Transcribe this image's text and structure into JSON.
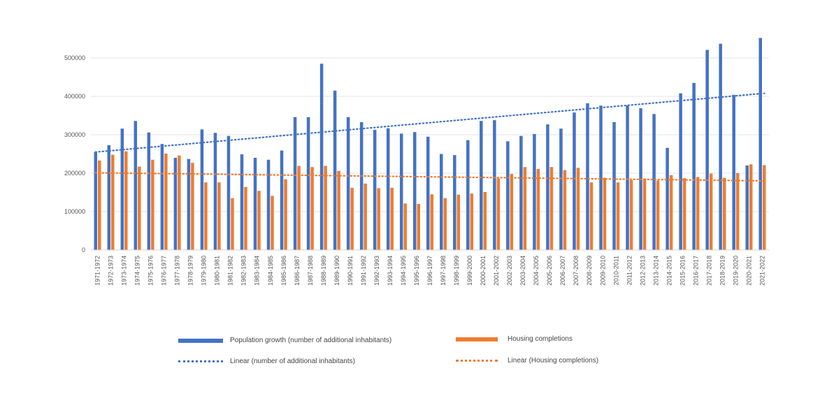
{
  "chart_data": {
    "type": "bar",
    "title": "",
    "xlabel": "",
    "ylabel": "",
    "ylim": [
      0,
      560000
    ],
    "yticks": [
      "0",
      "100000",
      "200000",
      "300000",
      "400000",
      "500000"
    ],
    "ytick_values": [
      0,
      100000,
      200000,
      300000,
      400000,
      500000
    ],
    "grid": true,
    "legend_position": "bottom",
    "categories": [
      "1971-1972",
      "1972-1973",
      "1973-1974",
      "1974-1975",
      "1975-1976",
      "1976-1977",
      "1977-1978",
      "1978-1979",
      "1979-1980",
      "1980-1981",
      "1981-1982",
      "1982-1983",
      "1983-1984",
      "1984-1985",
      "1985-1986",
      "1986-1987",
      "1987-1988",
      "1988-1989",
      "1989-1990",
      "1990-1991",
      "1991-1992",
      "1992-1993",
      "1993-1994",
      "1994-1995",
      "1995-1996",
      "1996-1997",
      "1997-1998",
      "1998-1999",
      "1999-2000",
      "2000-2001",
      "2001-2002",
      "2002-2003",
      "2003-2004",
      "2004-2005",
      "2005-2006",
      "2006-2007",
      "2007-2008",
      "2008-2009",
      "2009-2010",
      "2010-2011",
      "2011-2012",
      "2012-2013",
      "2013-2014",
      "2014-2015",
      "2015-2016",
      "2016-2017",
      "2017-2018",
      "2018-2019",
      "2019-2020",
      "2020-2021",
      "2021-2022"
    ],
    "series": [
      {
        "name": "Population growth (number of additional inhabitants)",
        "color": "#4472c4",
        "values": [
          255000,
          273000,
          316000,
          336000,
          306000,
          276000,
          240000,
          237000,
          314000,
          305000,
          297000,
          249000,
          240000,
          235000,
          259000,
          346000,
          346000,
          485000,
          415000,
          346000,
          333000,
          313000,
          317000,
          303000,
          307000,
          295000,
          250000,
          247000,
          286000,
          336000,
          338000,
          283000,
          297000,
          302000,
          327000,
          316000,
          358000,
          382000,
          376000,
          333000,
          376000,
          369000,
          354000,
          266000,
          408000,
          435000,
          521000,
          537000,
          404000,
          220000,
          552000
        ]
      },
      {
        "name": "Housing completions",
        "color": "#ed7d31",
        "values": [
          233000,
          248000,
          257000,
          217000,
          235000,
          251000,
          246000,
          227000,
          176000,
          176000,
          135000,
          164000,
          154000,
          141000,
          184000,
          219000,
          216000,
          219000,
          206000,
          162000,
          173000,
          161000,
          162000,
          121000,
          120000,
          145000,
          135000,
          144000,
          147000,
          151000,
          186000,
          198000,
          216000,
          211000,
          216000,
          208000,
          214000,
          176000,
          188000,
          176000,
          182000,
          186000,
          181000,
          195000,
          187000,
          190000,
          199000,
          188000,
          200000,
          223000,
          221000
        ]
      }
    ],
    "trendlines": [
      {
        "name": "Linear (number of additional inhabitants)",
        "color": "#4472c4",
        "start": 255000,
        "end": 408000
      },
      {
        "name": "Linear (Housing completions)",
        "color": "#ed7d31",
        "start": 201000,
        "end": 180000
      }
    ]
  }
}
